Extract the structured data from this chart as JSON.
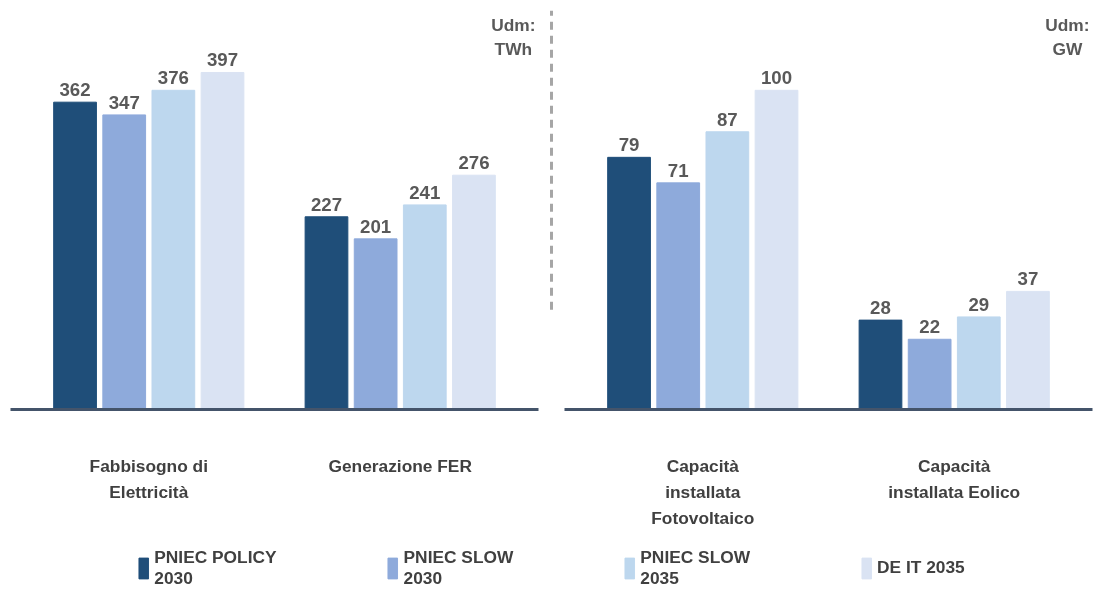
{
  "chart_data": [
    {
      "type": "bar",
      "categories": [
        "Fabbisogno di Elettricità",
        "Generazione FER"
      ],
      "annotations": [
        "Udm: TWh"
      ],
      "ylim": [
        0,
        470
      ],
      "data_labels": true,
      "legend": "bottom",
      "tick_labels": "x",
      "grid": false,
      "series": [
        {
          "name": "PNIEC POLICY 2030",
          "color": "#1f4e79",
          "values": [
            362,
            227
          ]
        },
        {
          "name": "PNIEC SLOW 2030",
          "color": "#8eaadb",
          "values": [
            347,
            201
          ]
        },
        {
          "name": "PNIEC SLOW 2035",
          "color": "#bdd7ee",
          "values": [
            376,
            241
          ]
        },
        {
          "name": "DE IT 2035",
          "color": "#dae3f3",
          "values": [
            397,
            276
          ]
        }
      ]
    },
    {
      "type": "bar",
      "categories": [
        "Capacità installata Fotovoltaico",
        "Capacità installata Eolico"
      ],
      "annotations": [
        "Udm: GW"
      ],
      "ylim": [
        0,
        125
      ],
      "data_labels": true,
      "tick_labels": "x",
      "grid": false,
      "series": [
        {
          "color": "#1f4e79",
          "values": [
            79,
            28
          ]
        },
        {
          "color": "#8eaadb",
          "values": [
            71,
            22
          ]
        },
        {
          "color": "#bdd7ee",
          "values": [
            87,
            29
          ]
        },
        {
          "color": "#dae3f3",
          "values": [
            100,
            37
          ]
        }
      ]
    }
  ]
}
